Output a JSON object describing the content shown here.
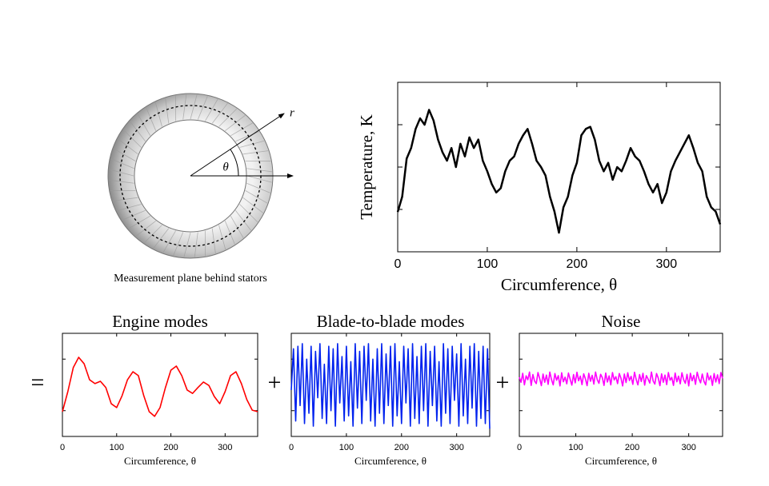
{
  "diagram": {
    "caption": "Measurement plane behind stators",
    "r_label": "r",
    "theta_label": "θ"
  },
  "operators": [
    "=",
    "+",
    "+"
  ],
  "chart_data": [
    {
      "type": "line",
      "xlabel": "Circumference, θ",
      "ylabel": "Temperature, K",
      "color": "#000000",
      "xlim": [
        0,
        360
      ],
      "xticks": [
        0,
        100,
        200,
        300
      ],
      "ylim": [
        0,
        4
      ],
      "yticks": [
        1,
        2,
        3
      ],
      "x": [
        0,
        5,
        10,
        15,
        20,
        25,
        30,
        35,
        40,
        45,
        50,
        55,
        60,
        65,
        70,
        75,
        80,
        85,
        90,
        95,
        100,
        105,
        110,
        115,
        120,
        125,
        130,
        135,
        140,
        145,
        150,
        155,
        160,
        165,
        170,
        175,
        180,
        185,
        190,
        195,
        200,
        205,
        210,
        215,
        220,
        225,
        230,
        235,
        240,
        245,
        250,
        255,
        260,
        265,
        270,
        275,
        280,
        285,
        290,
        295,
        300,
        305,
        310,
        315,
        320,
        325,
        330,
        335,
        340,
        345,
        350,
        355,
        360
      ],
      "values": [
        0.94,
        1.3,
        2.2,
        2.45,
        2.9,
        3.15,
        3.0,
        3.35,
        3.1,
        2.65,
        2.35,
        2.15,
        2.45,
        2.0,
        2.55,
        2.25,
        2.7,
        2.45,
        2.65,
        2.15,
        1.9,
        1.6,
        1.4,
        1.5,
        1.9,
        2.15,
        2.25,
        2.55,
        2.75,
        2.9,
        2.55,
        2.15,
        2.0,
        1.8,
        1.3,
        0.95,
        0.45,
        1.05,
        1.3,
        1.8,
        2.1,
        2.75,
        2.9,
        2.95,
        2.65,
        2.15,
        1.9,
        2.1,
        1.7,
        2.0,
        1.9,
        2.15,
        2.45,
        2.25,
        2.15,
        1.9,
        1.6,
        1.4,
        1.6,
        1.15,
        1.4,
        1.9,
        2.15,
        2.35,
        2.55,
        2.75,
        2.45,
        2.1,
        1.9,
        1.3,
        1.05,
        0.95,
        0.65
      ]
    },
    {
      "type": "line",
      "title": "Engine modes",
      "xlabel": "Circumference, θ",
      "color": "#ff0000",
      "xlim": [
        0,
        360
      ],
      "xticks": [
        0,
        100,
        200,
        300
      ],
      "ylim": [
        0,
        4
      ],
      "yticks": [
        1,
        3
      ],
      "x": [
        0,
        10,
        20,
        30,
        40,
        50,
        60,
        70,
        80,
        90,
        100,
        110,
        120,
        130,
        140,
        150,
        160,
        170,
        180,
        190,
        200,
        210,
        220,
        230,
        240,
        250,
        260,
        270,
        280,
        290,
        300,
        310,
        320,
        330,
        340,
        350,
        360
      ],
      "values": [
        0.96,
        1.74,
        2.67,
        3.07,
        2.82,
        2.2,
        2.05,
        2.14,
        1.9,
        1.27,
        1.12,
        1.58,
        2.2,
        2.51,
        2.36,
        1.58,
        0.96,
        0.78,
        1.12,
        1.9,
        2.57,
        2.73,
        2.36,
        1.8,
        1.67,
        1.9,
        2.11,
        1.98,
        1.55,
        1.27,
        1.74,
        2.36,
        2.51,
        2.05,
        1.43,
        1.02,
        0.96
      ]
    },
    {
      "type": "line",
      "title": "Blade-to-blade modes",
      "xlabel": "Circumference, θ",
      "color": "#0022ee",
      "xlim": [
        0,
        360
      ],
      "xticks": [
        0,
        100,
        200,
        300
      ],
      "ylim": [
        0,
        4
      ],
      "yticks": [
        1,
        3
      ],
      "x": [
        0,
        4,
        8,
        12,
        16,
        20,
        24,
        28,
        32,
        36,
        40,
        44,
        48,
        52,
        56,
        60,
        64,
        68,
        72,
        76,
        80,
        84,
        88,
        92,
        96,
        100,
        104,
        108,
        112,
        116,
        120,
        124,
        128,
        132,
        136,
        140,
        144,
        148,
        152,
        156,
        160,
        164,
        168,
        172,
        176,
        180,
        184,
        188,
        192,
        196,
        200,
        204,
        208,
        212,
        216,
        220,
        224,
        228,
        232,
        236,
        240,
        244,
        248,
        252,
        256,
        260,
        264,
        268,
        272,
        276,
        280,
        284,
        288,
        292,
        296,
        300,
        304,
        308,
        312,
        316,
        320,
        324,
        328,
        332,
        336,
        340,
        344,
        348,
        352,
        356,
        360
      ],
      "values": [
        1.8,
        3.4,
        0.6,
        3.5,
        1.2,
        3.6,
        0.5,
        3.0,
        0.9,
        3.5,
        0.4,
        3.3,
        1.5,
        3.6,
        0.7,
        2.8,
        0.5,
        3.5,
        1.0,
        3.4,
        0.4,
        3.6,
        1.3,
        3.1,
        0.6,
        3.5,
        0.8,
        2.9,
        0.4,
        3.6,
        1.1,
        3.3,
        0.5,
        3.5,
        1.4,
        3.6,
        0.6,
        3.0,
        0.4,
        3.4,
        0.9,
        3.6,
        0.5,
        3.2,
        1.2,
        3.5,
        0.4,
        3.6,
        0.8,
        2.9,
        0.5,
        3.5,
        1.3,
        3.4,
        0.4,
        3.6,
        0.7,
        3.1,
        0.5,
        3.5,
        1.0,
        3.6,
        0.4,
        3.3,
        1.2,
        3.5,
        0.6,
        2.9,
        0.4,
        3.6,
        0.9,
        3.4,
        0.5,
        3.5,
        1.4,
        3.2,
        0.4,
        3.6,
        0.8,
        3.0,
        0.5,
        3.5,
        1.1,
        3.6,
        0.4,
        3.3,
        0.7,
        3.5,
        0.5,
        3.4,
        0.3
      ]
    },
    {
      "type": "line",
      "title": "Noise",
      "xlabel": "Circumference, θ",
      "color": "#ff00ff",
      "xlim": [
        0,
        360
      ],
      "xticks": [
        0,
        100,
        200,
        300
      ],
      "ylim": [
        0,
        4
      ],
      "yticks": [
        1,
        3
      ],
      "x": [
        0,
        3,
        6,
        9,
        12,
        15,
        18,
        21,
        24,
        27,
        30,
        33,
        36,
        39,
        42,
        45,
        48,
        51,
        54,
        57,
        60,
        63,
        66,
        69,
        72,
        75,
        78,
        81,
        84,
        87,
        90,
        93,
        96,
        99,
        102,
        105,
        108,
        111,
        114,
        117,
        120,
        123,
        126,
        129,
        132,
        135,
        138,
        141,
        144,
        147,
        150,
        153,
        156,
        159,
        162,
        165,
        168,
        171,
        174,
        177,
        180,
        183,
        186,
        189,
        192,
        195,
        198,
        201,
        204,
        207,
        210,
        213,
        216,
        219,
        222,
        225,
        228,
        231,
        234,
        237,
        240,
        243,
        246,
        249,
        252,
        255,
        258,
        261,
        264,
        267,
        270,
        273,
        276,
        279,
        282,
        285,
        288,
        291,
        294,
        297,
        300,
        303,
        306,
        309,
        312,
        315,
        318,
        321,
        324,
        327,
        330,
        333,
        336,
        339,
        342,
        345,
        348,
        351,
        354,
        357,
        360
      ],
      "values": [
        2.3,
        2.1,
        2.45,
        2.0,
        2.35,
        2.2,
        2.5,
        1.98,
        2.4,
        2.15,
        2.05,
        2.48,
        2.25,
        1.97,
        2.42,
        2.1,
        2.38,
        2.02,
        2.5,
        2.2,
        2.0,
        2.44,
        2.18,
        2.36,
        1.96,
        2.47,
        2.12,
        2.3,
        2.04,
        2.46,
        2.22,
        1.99,
        2.4,
        2.08,
        2.49,
        2.16,
        2.34,
        2.01,
        2.43,
        2.24,
        1.97,
        2.45,
        2.14,
        2.37,
        2.03,
        2.5,
        2.2,
        2.06,
        2.41,
        2.28,
        1.98,
        2.46,
        2.11,
        2.35,
        2.0,
        2.48,
        2.19,
        2.32,
        2.05,
        2.44,
        2.26,
        1.96,
        2.42,
        2.09,
        2.47,
        2.17,
        2.33,
        2.02,
        2.49,
        2.21,
        2.0,
        2.4,
        2.13,
        2.45,
        1.99,
        2.36,
        2.23,
        2.07,
        2.5,
        2.15,
        2.03,
        2.44,
        2.27,
        1.97,
        2.43,
        2.1,
        2.38,
        2.01,
        2.48,
        2.18,
        2.29,
        1.98,
        2.46,
        2.12,
        2.34,
        2.04,
        2.47,
        2.2,
        2.06,
        2.41,
        1.96,
        2.45,
        2.16,
        2.37,
        2.02,
        2.49,
        2.24,
        2.08,
        2.42,
        2.14,
        2.0,
        2.46,
        2.19,
        2.35,
        1.98,
        2.44,
        2.11,
        2.39,
        2.05,
        2.48,
        2.25
      ]
    }
  ]
}
